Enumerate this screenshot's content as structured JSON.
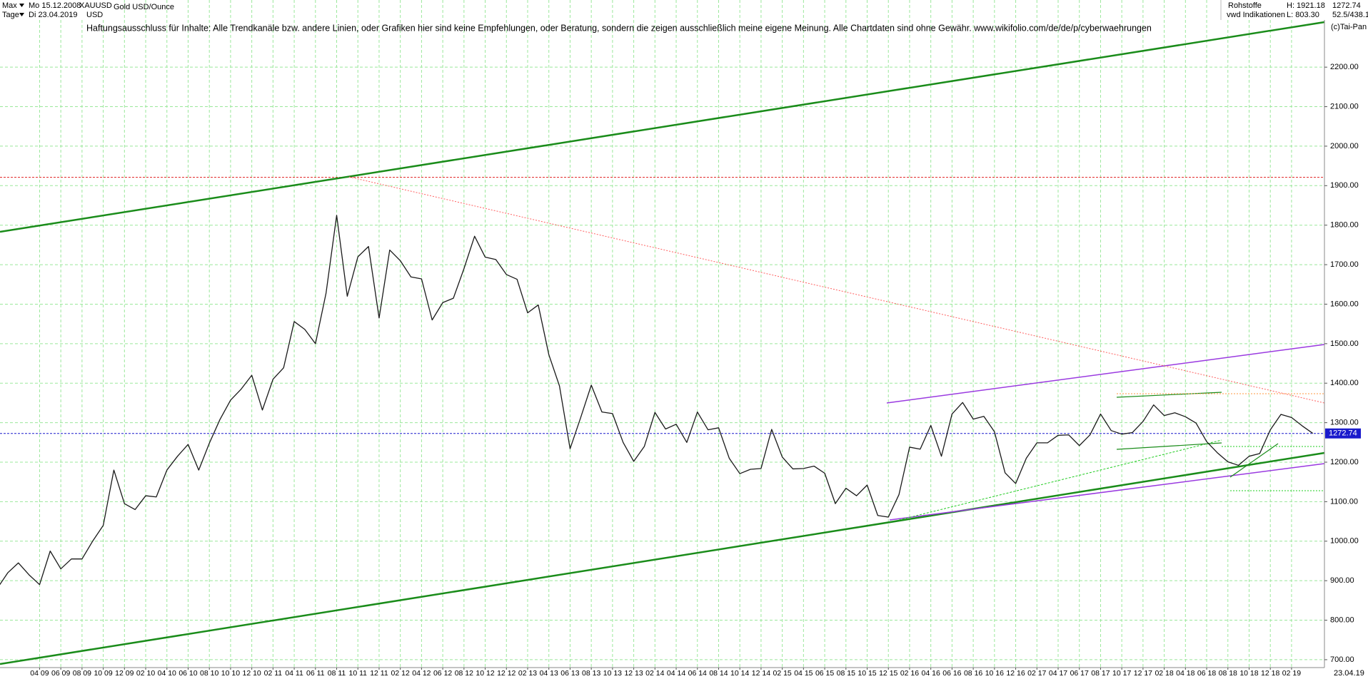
{
  "header": {
    "period": "Max",
    "interval": "Tage",
    "start": "Mo 15.12.2008",
    "end": "Di 23.04.2019",
    "symbol": "XAUUSD",
    "name": "Gold USD/Ounce",
    "currency": "USD",
    "group": "Rohstoffe",
    "source": "vwd Indikationen",
    "high": "H: 1921.18",
    "low": "L: 803.30",
    "last": "1272.74",
    "range": "52.5/438.1",
    "copyright": "(c)Tai-Pan",
    "date": "23.04.19",
    "disclaimer": "Haftungsausschluss für Inhalte: Alle Trendkanäle bzw. andere Linien, oder Grafiken hier sind keine Empfehlungen, oder Beratung, sondern die zeigen ausschließlich meine eigene Meinung. Alle Chartdaten sind ohne Gewähr.  www.wikifolio.com/de/de/p/cyberwaehrungen"
  },
  "chart_data": {
    "type": "line",
    "color": "#1a1a1a",
    "grid": true,
    "grid_color": "#9be89b",
    "categories": [
      null,
      null,
      null,
      null,
      "04 09",
      null,
      "06 09",
      null,
      "08 09",
      null,
      "10 09",
      null,
      "12 09",
      null,
      "02 10",
      null,
      "04 10",
      null,
      "06 10",
      null,
      "08 10",
      null,
      "10 10",
      null,
      "12 10",
      null,
      "02 11",
      null,
      "04 11",
      null,
      "06 11",
      null,
      "08 11",
      null,
      "10 11",
      null,
      "12 11",
      null,
      "02 12",
      null,
      "04 12",
      null,
      "06 12",
      null,
      "08 12",
      null,
      "10 12",
      null,
      "12 12",
      null,
      "02 13",
      null,
      "04 13",
      null,
      "06 13",
      null,
      "08 13",
      null,
      "10 13",
      null,
      "12 13",
      null,
      "02 14",
      null,
      "04 14",
      null,
      "06 14",
      null,
      "08 14",
      null,
      "10 14",
      null,
      "12 14",
      null,
      "02 15",
      null,
      "04 15",
      null,
      "06 15",
      null,
      "08 15",
      null,
      "10 15",
      null,
      "12 15",
      null,
      "02 16",
      null,
      "04 16",
      null,
      "06 16",
      null,
      "08 16",
      null,
      "10 16",
      null,
      "12 16",
      null,
      "02 17",
      null,
      "04 17",
      null,
      "06 17",
      null,
      "08 17",
      null,
      "10 17",
      null,
      "12 17",
      null,
      "02 18",
      null,
      "04 18",
      null,
      "06 18",
      null,
      "08 18",
      null,
      "10 18",
      null,
      "12 18",
      null,
      "02 19",
      null,
      null
    ],
    "values": [
      880,
      920,
      945,
      915,
      890,
      975,
      930,
      955,
      955,
      1000,
      1040,
      1180,
      1095,
      1080,
      1115,
      1112,
      1180,
      1215,
      1245,
      1180,
      1248,
      1308,
      1357,
      1385,
      1420,
      1332,
      1410,
      1439,
      1556,
      1536,
      1500,
      1628,
      1825,
      1620,
      1720,
      1746,
      1565,
      1737,
      1710,
      1669,
      1664,
      1560,
      1604,
      1615,
      1690,
      1772,
      1719,
      1713,
      1675,
      1663,
      1578,
      1598,
      1472,
      1393,
      1234,
      1313,
      1395,
      1327,
      1323,
      1250,
      1202,
      1240,
      1326,
      1284,
      1296,
      1250,
      1327,
      1282,
      1287,
      1210,
      1171,
      1182,
      1184,
      1283,
      1213,
      1183,
      1184,
      1190,
      1172,
      1095,
      1134,
      1115,
      1142,
      1065,
      1061,
      1118,
      1238,
      1233,
      1293,
      1215,
      1322,
      1351,
      1309,
      1316,
      1277,
      1173,
      1146,
      1210,
      1249,
      1249,
      1268,
      1269,
      1242,
      1269,
      1322,
      1280,
      1271,
      1275,
      1303,
      1345,
      1318,
      1325,
      1315,
      1299,
      1252,
      1224,
      1201,
      1192,
      1215,
      1222,
      1282,
      1321,
      1313,
      1292,
      1273
    ],
    "ylim": [
      680,
      2370
    ],
    "yticks": [
      {
        "value": 700,
        "label": "700.00"
      },
      {
        "value": 800,
        "label": "800.00"
      },
      {
        "value": 900,
        "label": "900.00"
      },
      {
        "value": 1000,
        "label": "1000.00"
      },
      {
        "value": 1100,
        "label": "1100.00"
      },
      {
        "value": 1200,
        "label": "1200.00"
      },
      {
        "value": 1300,
        "label": "1300.00"
      },
      {
        "value": 1400,
        "label": "1400.00"
      },
      {
        "value": 1500,
        "label": "1500.00"
      },
      {
        "value": 1600,
        "label": "1600.00"
      },
      {
        "value": 1700,
        "label": "1700.00"
      },
      {
        "value": 1800,
        "label": "1800.00"
      },
      {
        "value": 1900,
        "label": "1900.00"
      },
      {
        "value": 2000,
        "label": "2000.00"
      },
      {
        "value": 2100,
        "label": "2100.00"
      },
      {
        "value": 2200,
        "label": "2200.00"
      }
    ],
    "reference_lines": [
      {
        "value": 1921.18,
        "color": "#e02020"
      },
      {
        "value": 1272.74,
        "color": "#1a1acc",
        "label": "1272.74"
      }
    ]
  }
}
